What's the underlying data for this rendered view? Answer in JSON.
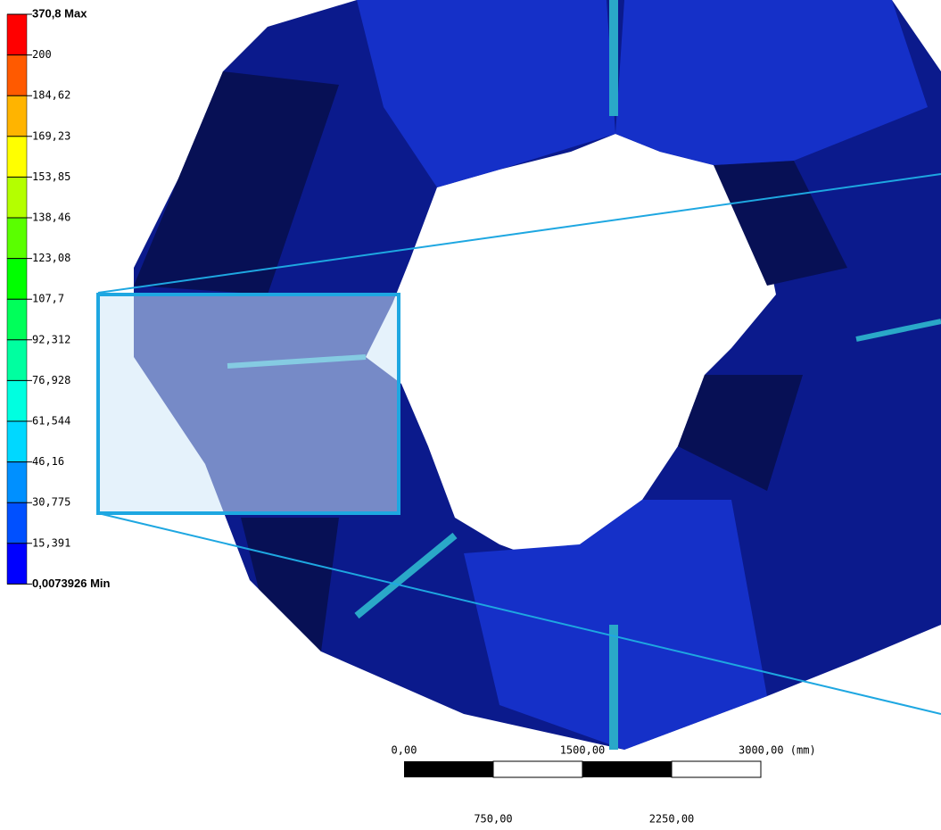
{
  "legend": {
    "entries": [
      {
        "label": "370,8 Max",
        "color": "#ff0000"
      },
      {
        "label": "200",
        "color": "#ff5a00"
      },
      {
        "label": "184,62",
        "color": "#ffb400"
      },
      {
        "label": "169,23",
        "color": "#ffff00"
      },
      {
        "label": "153,85",
        "color": "#b4ff00"
      },
      {
        "label": "138,46",
        "color": "#5aff00"
      },
      {
        "label": "123,08",
        "color": "#00ff00"
      },
      {
        "label": "107,7",
        "color": "#00ff5a"
      },
      {
        "label": "92,312",
        "color": "#00ffa0"
      },
      {
        "label": "76,928",
        "color": "#00ffe0"
      },
      {
        "label": "61,544",
        "color": "#00d8ff"
      },
      {
        "label": "46,16",
        "color": "#0090ff"
      },
      {
        "label": "30,775",
        "color": "#0050ff"
      },
      {
        "label": "15,391",
        "color": "#0000ff"
      },
      {
        "label": "0,0073926 Min"
      }
    ]
  },
  "scale_bar": {
    "top_labels": [
      "0,00",
      "1500,00",
      "3000,00 (mm)"
    ],
    "bottom_labels": [
      "750,00",
      "2250,00"
    ]
  }
}
